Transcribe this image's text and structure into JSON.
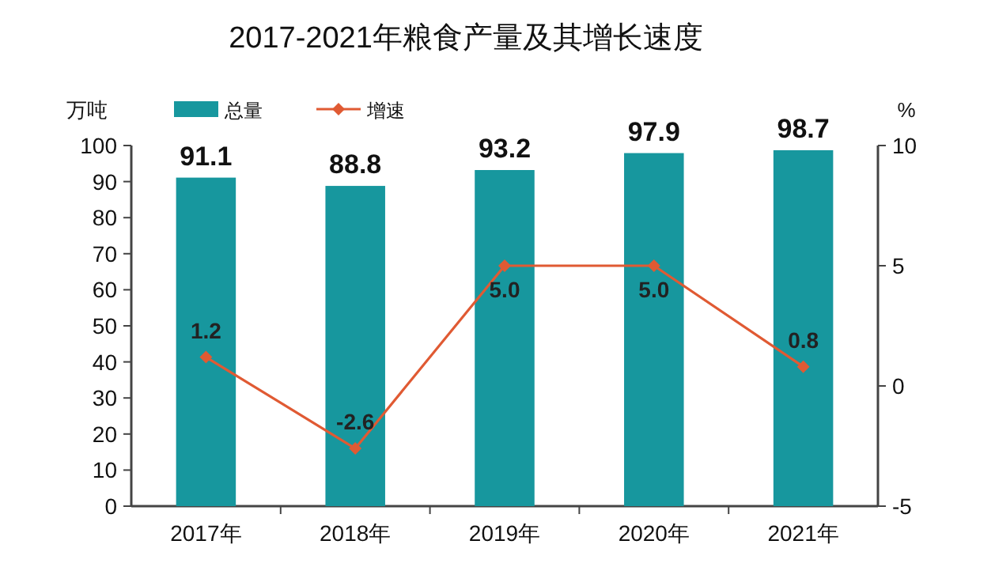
{
  "chart_data": {
    "type": "bar",
    "title": "2017-2021年粮食产量及其增长速度",
    "categories": [
      "2017年",
      "2018年",
      "2019年",
      "2020年",
      "2021年"
    ],
    "ylabel": "万吨",
    "y2label": "%",
    "ylim": [
      0,
      100
    ],
    "yticks": [
      0,
      10,
      20,
      30,
      40,
      50,
      60,
      70,
      80,
      90,
      100
    ],
    "y2lim": [
      -5,
      10
    ],
    "y2ticks": [
      -5,
      0,
      5,
      10
    ],
    "legend": "top left",
    "marker": "diamond",
    "series": [
      {
        "name": "总量",
        "color": "#17979e",
        "values": [
          91.1,
          88.8,
          93.2,
          97.9,
          98.7
        ],
        "value_labels": [
          "91.1",
          "88.8",
          "93.2",
          "97.9",
          "98.7"
        ]
      },
      {
        "name": "增速",
        "type": "line",
        "axis": "y2",
        "color": "#e05a33",
        "values": [
          1.2,
          -2.6,
          5.0,
          5.0,
          0.8
        ],
        "value_labels": [
          "1.2",
          "-2.6",
          "5.0",
          "5.0",
          "0.8"
        ]
      }
    ]
  }
}
